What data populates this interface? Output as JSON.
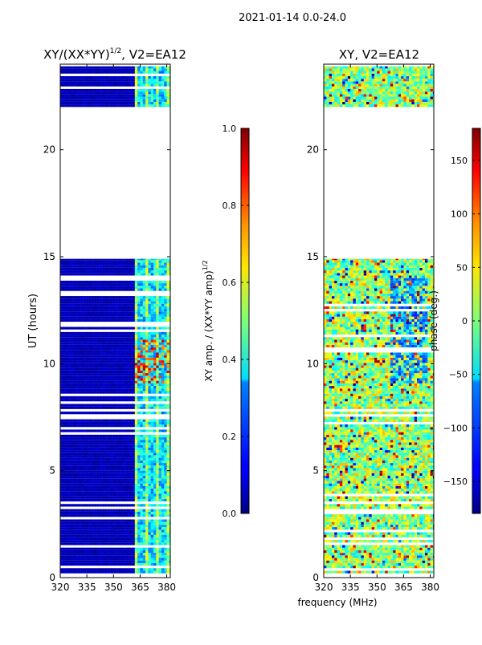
{
  "suptitle": "2021-01-14 0.0-24.0",
  "chart_data": [
    {
      "type": "heatmap",
      "title": "XY/(XX*YY)",
      "title_sup": "1/2",
      "title_suffix": ", V2=EA12",
      "xlabel": "",
      "ylabel": "UT (hours)",
      "xlim": [
        320,
        382
      ],
      "ylim": [
        0,
        24
      ],
      "xticks": [
        320,
        335,
        350,
        365,
        380
      ],
      "yticks": [
        0,
        5,
        10,
        15,
        20
      ],
      "data_blocks_ut": [
        [
          0.2,
          14.9
        ],
        [
          22.0,
          23.9
        ]
      ],
      "colorbar": {
        "label": "XY amp. / (XX*YY amp)",
        "label_sup": "1/2",
        "range": [
          0.0,
          1.0
        ],
        "ticks": [
          "0.0",
          "0.2",
          "0.4",
          "0.6",
          "0.8",
          "1.0"
        ],
        "tick_values": [
          0.0,
          0.2,
          0.4,
          0.6,
          0.8,
          1.0
        ]
      }
    },
    {
      "type": "heatmap",
      "title": "XY, V2=EA12",
      "xlabel": "frequency (MHz)",
      "ylabel": "",
      "xlim": [
        320,
        382
      ],
      "ylim": [
        0,
        24
      ],
      "xticks": [
        320,
        335,
        350,
        365,
        380
      ],
      "yticks": [
        0,
        5,
        10,
        15,
        20
      ],
      "data_blocks_ut": [
        [
          0.2,
          14.9
        ],
        [
          22.0,
          23.9
        ]
      ],
      "colorbar": {
        "label": "phase (deg.)",
        "range": [
          -180,
          180
        ],
        "ticks": [
          "150",
          "100",
          "50",
          "0",
          "−50",
          "−100",
          "−150"
        ],
        "tick_values": [
          150,
          100,
          50,
          0,
          -50,
          -100,
          -150
        ]
      }
    }
  ]
}
